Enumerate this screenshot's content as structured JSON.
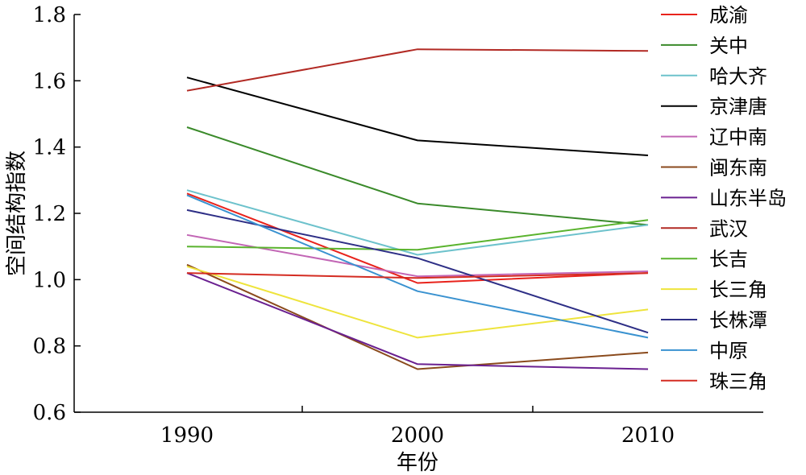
{
  "chart_data": {
    "type": "line",
    "title": "",
    "xlabel": "年份",
    "ylabel": "空间结构指数",
    "x": [
      "1990",
      "2000",
      "2010"
    ],
    "ylim": [
      0.6,
      1.8
    ],
    "yticks": [
      "0.6",
      "0.8",
      "1.0",
      "1.2",
      "1.4",
      "1.6",
      "1.8"
    ],
    "grid": false,
    "legend_position": "right",
    "series": [
      {
        "name": "成渝",
        "color": "#e8231c",
        "values": [
          1.26,
          0.99,
          1.02
        ]
      },
      {
        "name": "关中",
        "color": "#3a8a2a",
        "values": [
          1.46,
          1.23,
          1.165
        ]
      },
      {
        "name": "哈大齐",
        "color": "#6dc2cc",
        "values": [
          1.27,
          1.075,
          1.165
        ]
      },
      {
        "name": "京津唐",
        "color": "#000000",
        "values": [
          1.61,
          1.42,
          1.375
        ]
      },
      {
        "name": "辽中南",
        "color": "#c266b5",
        "values": [
          1.135,
          1.01,
          1.025
        ]
      },
      {
        "name": "闽东南",
        "color": "#8a4a1c",
        "values": [
          1.045,
          0.73,
          0.78
        ]
      },
      {
        "name": "山东半岛",
        "color": "#6a2090",
        "values": [
          1.02,
          0.745,
          0.73
        ]
      },
      {
        "name": "武汉",
        "color": "#b22a24",
        "values": [
          1.57,
          1.695,
          1.69
        ]
      },
      {
        "name": "长吉",
        "color": "#5ab32e",
        "values": [
          1.1,
          1.09,
          1.18
        ]
      },
      {
        "name": "长三角",
        "color": "#eee43c",
        "values": [
          1.04,
          0.825,
          0.91
        ]
      },
      {
        "name": "长株潭",
        "color": "#2e2f86",
        "values": [
          1.21,
          1.065,
          0.84
        ]
      },
      {
        "name": "中原",
        "color": "#3a92d0",
        "values": [
          1.255,
          0.965,
          0.825
        ]
      },
      {
        "name": "珠三角",
        "color": "#d42c22",
        "values": [
          1.02,
          1.005,
          1.02
        ]
      }
    ]
  }
}
